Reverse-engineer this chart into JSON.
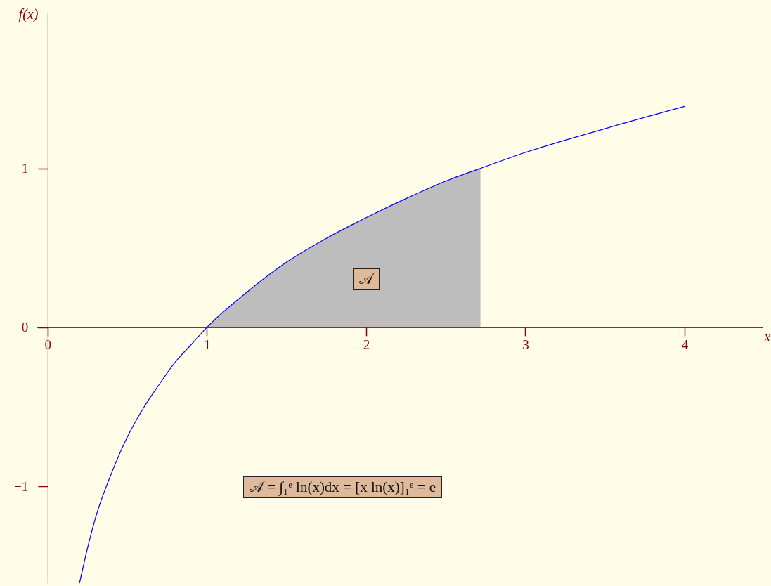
{
  "chart_data": {
    "type": "line",
    "xlabel": "x",
    "ylabel": "f(x)",
    "xlim": [
      -0.07,
      4.49
    ],
    "ylim": [
      -1.61,
      1.98
    ],
    "xticks": [
      0,
      1,
      2,
      3,
      4
    ],
    "yticks": [
      {
        "value": -1,
        "label": "−1"
      },
      0,
      1
    ],
    "grid": false,
    "marker": "none",
    "line_style": "solid",
    "series": [
      {
        "type": "area",
        "color": "#bdbdbd",
        "x": [
          1,
          1.25,
          1.5,
          1.75,
          2,
          2.25,
          2.5,
          2.718
        ],
        "values": [
          0,
          0.22,
          0.41,
          0.56,
          0.69,
          0.81,
          0.92,
          1.0
        ]
      },
      {
        "type": "line",
        "color": "#0000ff",
        "x": [
          0.2,
          0.25,
          0.3,
          0.4,
          0.5,
          0.6,
          0.7,
          0.8,
          0.9,
          1,
          1.25,
          1.5,
          1.75,
          2,
          2.25,
          2.5,
          2.718,
          3,
          3.5,
          4
        ],
        "values": [
          -1.61,
          -1.39,
          -1.2,
          -0.92,
          -0.69,
          -0.51,
          -0.36,
          -0.22,
          -0.11,
          0,
          0.22,
          0.41,
          0.56,
          0.69,
          0.81,
          0.92,
          1.0,
          1.1,
          1.25,
          1.39
        ]
      }
    ],
    "annotations": [
      {
        "text": "𝒜",
        "x": 2,
        "y": 0.3
      },
      "𝒜 = ∫₁ᵉ ln(x)dx = [x ln(x)]₁ᵉ = e"
    ]
  }
}
